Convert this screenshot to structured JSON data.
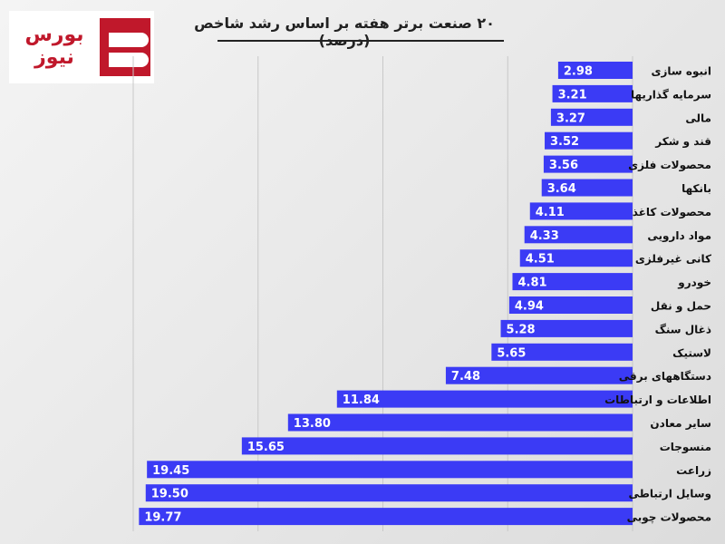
{
  "logo": {
    "text": "بورس نیوز",
    "brand_color": "#c0182b"
  },
  "chart_data": {
    "type": "bar",
    "orientation": "horizontal",
    "title": "۲۰ صنعت برتر هفته بر اساس رشد شاخص (درصد)",
    "bar_color": "#3b3bf5",
    "xlim": [
      0,
      20
    ],
    "grid": "vertical",
    "categories": [
      "انبوه سازی",
      "سرمایه گذاریها",
      "مالی",
      "قند و شکر",
      "محصولات فلزی",
      "بانکها",
      "محصولات کاغذ",
      "مواد دارویی",
      "کانی غیرفلزی",
      "خودرو",
      "حمل و نقل",
      "ذغال سنگ",
      "لاستیک",
      "دستگاههای برقی",
      "اطلاعات و ارتباطات",
      "سایر معادن",
      "منسوجات",
      "زراعت",
      "وسایل ارتباطی",
      "محصولات چوبی"
    ],
    "values": [
      2.98,
      3.21,
      3.27,
      3.52,
      3.56,
      3.64,
      4.11,
      4.33,
      4.51,
      4.81,
      4.94,
      5.28,
      5.65,
      7.48,
      11.84,
      13.8,
      15.65,
      19.45,
      19.5,
      19.77
    ],
    "value_labels": [
      "2.98",
      "3.21",
      "3.27",
      "3.52",
      "3.56",
      "3.64",
      "4.11",
      "4.33",
      "4.51",
      "4.81",
      "4.94",
      "5.28",
      "5.65",
      "7.48",
      "11.84",
      "13.80",
      "15.65",
      "19.45",
      "19.50",
      "19.77"
    ]
  }
}
